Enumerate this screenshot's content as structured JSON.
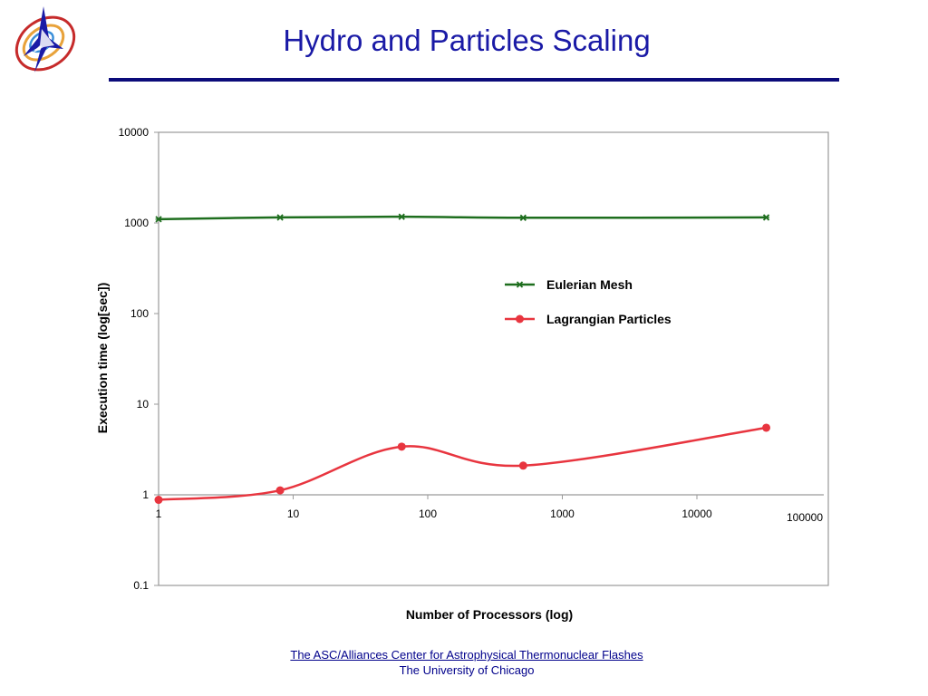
{
  "slide": {
    "title": "Hydro and Particles Scaling",
    "footer_line1": "The ASC/Alliances Center for Astrophysical Thermonuclear Flashes",
    "footer_line2": "The University of Chicago",
    "accent_color": "#0b0b7a"
  },
  "chart_data": {
    "type": "line",
    "title": "",
    "xlabel": "Number of Processors (log)",
    "ylabel": "Execution time (log[sec])",
    "xscale": "log",
    "yscale": "log",
    "xlim": [
      1,
      100000
    ],
    "ylim": [
      0.1,
      10000
    ],
    "x_ticks": [
      "1",
      "10",
      "100",
      "1000",
      "10000",
      "100000"
    ],
    "y_ticks": [
      "0.1",
      "1",
      "10",
      "100",
      "1000",
      "10000"
    ],
    "grid": "horizontal line at y=1 only",
    "legend_placement": "right-center",
    "series": [
      {
        "name": "Eulerian Mesh",
        "color": "#1e6e1e",
        "marker": "x",
        "x": [
          1,
          8,
          64,
          512,
          32768
        ],
        "y": [
          1100,
          1150,
          1170,
          1140,
          1150
        ]
      },
      {
        "name": "Lagrangian Particles",
        "color": "#e8353f",
        "marker": "circle",
        "x": [
          1,
          8,
          64,
          512,
          32768
        ],
        "y": [
          0.88,
          1.12,
          3.4,
          2.1,
          5.5
        ]
      }
    ]
  }
}
